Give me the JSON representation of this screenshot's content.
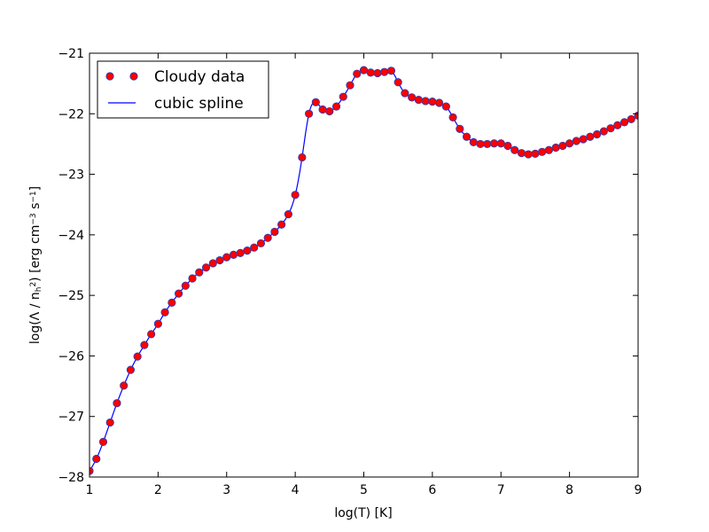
{
  "chart_data": {
    "type": "line",
    "title": "",
    "xlabel": "log(T) [K]",
    "ylabel_parts": {
      "prefix": "log(Λ / n",
      "sub": "h",
      "sup2": "2",
      "mid": ") [erg cm",
      "sup_cm": "−3",
      "s_text": " s",
      "sup_s": "−1",
      "suffix": "]"
    },
    "xlim": [
      1,
      9
    ],
    "ylim": [
      -28,
      -21
    ],
    "xticks": [
      1,
      2,
      3,
      4,
      5,
      6,
      7,
      8,
      9
    ],
    "yticks": [
      -28,
      -27,
      -26,
      -25,
      -24,
      -23,
      -22,
      -21
    ],
    "xtick_labels": [
      "1",
      "2",
      "3",
      "4",
      "5",
      "6",
      "7",
      "8",
      "9"
    ],
    "ytick_labels": [
      "−28",
      "−27",
      "−26",
      "−25",
      "−24",
      "−23",
      "−22",
      "−21"
    ],
    "grid": false,
    "legend_position": "top-left",
    "series": [
      {
        "name": "Cloudy data",
        "style": "markers",
        "marker_color": "#ff0000",
        "edge_color": "#1f3fbf",
        "x": [
          1.0,
          1.1,
          1.2,
          1.3,
          1.4,
          1.5,
          1.6,
          1.7,
          1.8,
          1.9,
          2.0,
          2.1,
          2.2,
          2.3,
          2.4,
          2.5,
          2.6,
          2.7,
          2.8,
          2.9,
          3.0,
          3.1,
          3.2,
          3.3,
          3.4,
          3.5,
          3.6,
          3.7,
          3.8,
          3.9,
          4.0,
          4.1,
          4.2,
          4.3,
          4.4,
          4.5,
          4.6,
          4.7,
          4.8,
          4.9,
          5.0,
          5.1,
          5.2,
          5.3,
          5.4,
          5.5,
          5.6,
          5.7,
          5.8,
          5.9,
          6.0,
          6.1,
          6.2,
          6.3,
          6.4,
          6.5,
          6.6,
          6.7,
          6.8,
          6.9,
          7.0,
          7.1,
          7.2,
          7.3,
          7.4,
          7.5,
          7.6,
          7.7,
          7.8,
          7.9,
          8.0,
          8.1,
          8.2,
          8.3,
          8.4,
          8.5,
          8.6,
          8.7,
          8.8,
          8.9,
          9.0
        ],
        "y": [
          -27.9,
          -27.7,
          -27.42,
          -27.1,
          -26.78,
          -26.49,
          -26.23,
          -26.01,
          -25.82,
          -25.64,
          -25.47,
          -25.28,
          -25.12,
          -24.97,
          -24.84,
          -24.72,
          -24.62,
          -24.54,
          -24.47,
          -24.42,
          -24.37,
          -24.33,
          -24.3,
          -24.26,
          -24.21,
          -24.14,
          -24.05,
          -23.95,
          -23.83,
          -23.66,
          -23.34,
          -22.72,
          -22.0,
          -21.81,
          -21.93,
          -21.96,
          -21.88,
          -21.72,
          -21.53,
          -21.34,
          -21.28,
          -21.32,
          -21.33,
          -21.31,
          -21.29,
          -21.48,
          -21.66,
          -21.73,
          -21.77,
          -21.79,
          -21.8,
          -21.82,
          -21.88,
          -22.06,
          -22.25,
          -22.38,
          -22.47,
          -22.5,
          -22.5,
          -22.49,
          -22.49,
          -22.53,
          -22.6,
          -22.65,
          -22.67,
          -22.66,
          -22.63,
          -22.6,
          -22.56,
          -22.53,
          -22.49,
          -22.45,
          -22.42,
          -22.38,
          -22.34,
          -22.29,
          -22.24,
          -22.19,
          -22.14,
          -22.09,
          -22.03
        ]
      },
      {
        "name": "cubic spline",
        "style": "line",
        "line_color": "#0000ff"
      }
    ]
  }
}
